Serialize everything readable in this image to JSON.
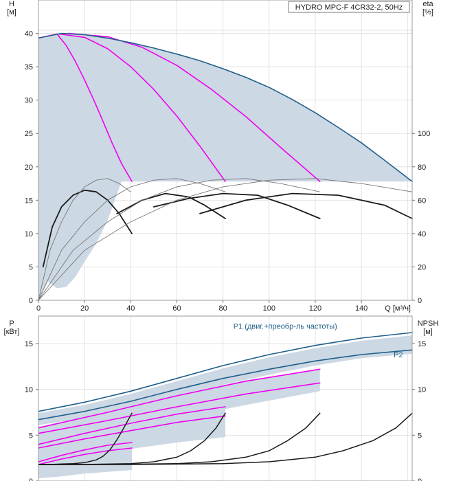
{
  "title": "HYDRO MPC-F 4CR32-2, 50Hz",
  "colors": {
    "area": "#ccd8e4",
    "envelope": "#1f5f8b",
    "magenta": "#f000f0",
    "curve": "#1a1a1a",
    "thin": "#777777",
    "grid": "#e2e2e2"
  },
  "chart_data": [
    {
      "type": "line",
      "name": "performance",
      "title": "HYDRO MPC-F 4CR32-2, 50Hz",
      "xlabel": "Q [м³/ч]",
      "ylabel": "H [м]",
      "y2label": "eta [%]",
      "x_axis": {
        "lim": [
          0,
          162
        ],
        "ticks": [
          0,
          20,
          40,
          60,
          80,
          100,
          120,
          140
        ],
        "label_lines": [
          "Q [м³/ч]"
        ]
      },
      "y_axis": {
        "lim": [
          0,
          45
        ],
        "ticks": [
          0,
          5,
          10,
          15,
          20,
          25,
          30,
          35,
          40
        ],
        "label_lines": [
          "H",
          "[м]"
        ]
      },
      "y2_axis": {
        "lim": [
          0,
          180
        ],
        "ticks": [
          0,
          20,
          40,
          60,
          80,
          100
        ],
        "label_lines": [
          "eta",
          "[%]"
        ]
      },
      "grid": true,
      "series": [
        {
          "role": "magenta",
          "axis": "y",
          "x": [
            0,
            4,
            8,
            12,
            16,
            20,
            24,
            28,
            32,
            36,
            40.5
          ],
          "y": [
            39.3,
            39.6,
            39.9,
            38.2,
            35.8,
            33,
            30,
            26.8,
            23.5,
            20.5,
            17.8
          ]
        },
        {
          "role": "magenta",
          "axis": "y",
          "x": [
            9,
            20,
            30,
            40,
            50,
            60,
            70,
            81
          ],
          "y": [
            39.9,
            39.4,
            37.7,
            35,
            31.6,
            27.6,
            23.1,
            17.8
          ]
        },
        {
          "role": "magenta",
          "axis": "y",
          "x": [
            13,
            30,
            45,
            60,
            75,
            90,
            105,
            122
          ],
          "y": [
            40,
            39.5,
            37.9,
            35.2,
            31.6,
            27.5,
            22.9,
            17.8
          ]
        },
        {
          "role": "envelope",
          "axis": "y",
          "x": [
            0,
            10,
            20,
            30,
            40,
            50,
            60,
            70,
            80,
            90,
            100,
            110,
            120,
            130,
            140,
            150,
            162
          ],
          "y": [
            39.3,
            40,
            39.8,
            39.3,
            38.6,
            37.8,
            36.9,
            35.9,
            34.7,
            33.4,
            31.9,
            30.1,
            28.1,
            25.9,
            23.6,
            21,
            17.8
          ]
        },
        {
          "role": "eta",
          "axis": "y2",
          "x": [
            2,
            6,
            10,
            15,
            20,
            25,
            30,
            35,
            40.5
          ],
          "y": [
            20,
            44,
            56,
            63,
            66,
            65,
            60,
            52,
            40
          ]
        },
        {
          "role": "eta",
          "axis": "y2",
          "x": [
            34,
            45,
            55,
            65,
            72,
            81
          ],
          "y": [
            52,
            60,
            64,
            62,
            57,
            49
          ]
        },
        {
          "role": "eta",
          "axis": "y2",
          "x": [
            50,
            65,
            80,
            95,
            108,
            122
          ],
          "y": [
            56,
            61,
            64,
            63,
            57,
            49
          ]
        },
        {
          "role": "eta",
          "axis": "y2",
          "x": [
            70,
            90,
            110,
            130,
            150,
            162
          ],
          "y": [
            52,
            60,
            64,
            63,
            57,
            49
          ]
        },
        {
          "role": "eta_thin",
          "axis": "y2",
          "x": [
            0,
            5,
            10,
            15,
            20,
            25,
            30,
            35,
            40
          ],
          "y": [
            0,
            30,
            47,
            60,
            68,
            72,
            73,
            70,
            65
          ]
        },
        {
          "role": "eta_thin",
          "axis": "y2",
          "x": [
            0,
            10,
            20,
            30,
            40,
            50,
            60,
            70,
            81
          ],
          "y": [
            0,
            30,
            47,
            60,
            68,
            72,
            73,
            70,
            65
          ]
        },
        {
          "role": "eta_thin",
          "axis": "y2",
          "x": [
            0,
            15,
            30,
            45,
            60,
            75,
            90,
            105,
            122
          ],
          "y": [
            0,
            30,
            47,
            60,
            68,
            72,
            73,
            70,
            65
          ]
        },
        {
          "role": "eta_thin",
          "axis": "y2",
          "x": [
            0,
            20,
            40,
            60,
            80,
            100,
            120,
            140,
            162
          ],
          "y": [
            0,
            30,
            47,
            60,
            68,
            72,
            73,
            70,
            65
          ]
        }
      ],
      "areas": [
        {
          "x": [
            0,
            5,
            10,
            13,
            20,
            30,
            40,
            50,
            60,
            70,
            80,
            90,
            100,
            110,
            120,
            130,
            140,
            150,
            162,
            162,
            60,
            40,
            36,
            30,
            25,
            20,
            16,
            12,
            8,
            4,
            0
          ],
          "y": [
            39.3,
            39.6,
            39.9,
            40,
            39.8,
            39.3,
            38.6,
            37.8,
            36.9,
            35.9,
            34.7,
            33.4,
            31.9,
            30.1,
            28.1,
            25.9,
            23.6,
            21,
            17.8,
            17.8,
            17.8,
            17.8,
            17.8,
            12,
            8.5,
            5.8,
            3.5,
            2,
            1.8,
            2.8,
            0
          ]
        }
      ]
    },
    {
      "type": "line",
      "name": "power-npsh",
      "xlabel": "",
      "ylabel": "P [кВт]",
      "y2label": "NPSH [м]",
      "x_axis": {
        "lim": [
          0,
          162
        ],
        "ticks": [],
        "label_lines": []
      },
      "y_axis": {
        "lim": [
          0,
          18
        ],
        "ticks": [
          0,
          5,
          10,
          15
        ],
        "label_lines": [
          "P",
          "[кВт]"
        ]
      },
      "y2_axis": {
        "lim": [
          0,
          18
        ],
        "ticks": [
          0,
          5,
          10,
          15
        ],
        "label_lines": [
          "NPSH",
          "[м]"
        ]
      },
      "grid": true,
      "annotations": [
        {
          "text": "P1 (двиг.+преобр-ль частоты)",
          "x": 107,
          "y": 16.6
        },
        {
          "text": "P2",
          "x": 156,
          "y": 13.5
        }
      ],
      "series": [
        {
          "role": "envelope",
          "name": "P1 (двиг.+преобр-ль частоты)",
          "axis": "y",
          "x": [
            0,
            20,
            40,
            60,
            80,
            100,
            120,
            140,
            162
          ],
          "y": [
            7.6,
            8.6,
            9.8,
            11.2,
            12.6,
            13.8,
            14.8,
            15.6,
            16.2
          ]
        },
        {
          "role": "envelope",
          "name": "P2",
          "axis": "y",
          "x": [
            0,
            20,
            40,
            60,
            80,
            100,
            120,
            140,
            162
          ],
          "y": [
            6.7,
            7.6,
            8.7,
            10,
            11.2,
            12.2,
            13.1,
            13.8,
            14.3
          ]
        },
        {
          "role": "magenta",
          "axis": "y",
          "x": [
            0,
            10,
            20,
            30,
            40.5
          ],
          "y": [
            2.1,
            2.8,
            3.4,
            3.9,
            4.2
          ]
        },
        {
          "role": "magenta",
          "axis": "y",
          "x": [
            0,
            10,
            20,
            30,
            40.5
          ],
          "y": [
            1.8,
            2.4,
            2.9,
            3.3,
            3.6
          ]
        },
        {
          "role": "magenta",
          "axis": "y",
          "x": [
            0,
            20,
            40,
            60,
            81
          ],
          "y": [
            4,
            5.2,
            6.3,
            7.3,
            8.1
          ]
        },
        {
          "role": "magenta",
          "axis": "y",
          "x": [
            0,
            20,
            40,
            60,
            81
          ],
          "y": [
            3.6,
            4.6,
            5.5,
            6.4,
            7.1
          ]
        },
        {
          "role": "magenta",
          "axis": "y",
          "x": [
            0,
            30,
            60,
            90,
            122
          ],
          "y": [
            5.8,
            7.5,
            9.3,
            10.9,
            12.2
          ]
        },
        {
          "role": "magenta",
          "axis": "y",
          "x": [
            0,
            30,
            60,
            90,
            122
          ],
          "y": [
            5.2,
            6.6,
            8.1,
            9.5,
            10.7
          ]
        },
        {
          "role": "npsh",
          "axis": "y2",
          "x": [
            0,
            5,
            10,
            15,
            20,
            25,
            28,
            31,
            34,
            37,
            40.5
          ],
          "y": [
            1.8,
            1.8,
            1.85,
            1.9,
            2,
            2.3,
            2.7,
            3.4,
            4.5,
            5.8,
            7.4
          ]
        },
        {
          "role": "npsh",
          "axis": "y2",
          "x": [
            0,
            20,
            40,
            50,
            60,
            66,
            72,
            77,
            81
          ],
          "y": [
            1.8,
            1.8,
            1.9,
            2.1,
            2.6,
            3.3,
            4.4,
            5.8,
            7.4
          ]
        },
        {
          "role": "npsh",
          "axis": "y2",
          "x": [
            0,
            30,
            60,
            75,
            90,
            100,
            108,
            116,
            122
          ],
          "y": [
            1.8,
            1.8,
            1.9,
            2.1,
            2.6,
            3.3,
            4.4,
            5.8,
            7.4
          ]
        },
        {
          "role": "npsh",
          "axis": "y2",
          "x": [
            0,
            40,
            80,
            100,
            120,
            132,
            145,
            155,
            162
          ],
          "y": [
            1.8,
            1.8,
            1.9,
            2.1,
            2.6,
            3.3,
            4.4,
            5.8,
            7.4
          ]
        }
      ],
      "areas": [
        {
          "x": [
            0,
            20,
            40,
            60,
            80,
            100,
            120,
            140,
            162,
            162,
            140,
            120,
            100,
            80,
            60,
            40,
            20,
            0
          ],
          "y": [
            7.4,
            8.3,
            9.5,
            10.9,
            12.3,
            13.5,
            14.5,
            15.3,
            15.9,
            13.9,
            13.4,
            12.6,
            11.6,
            10.5,
            9.3,
            8.0,
            6.9,
            6.1
          ]
        },
        {
          "x": [
            0,
            20,
            40,
            60,
            81,
            81,
            60,
            40,
            20,
            0
          ],
          "y": [
            4.1,
            5.3,
            6.4,
            7.4,
            8.2,
            4.8,
            4.2,
            3.5,
            2.7,
            2.0
          ]
        },
        {
          "x": [
            0,
            30,
            60,
            90,
            122,
            122,
            90,
            60,
            30,
            0
          ],
          "y": [
            5.9,
            7.6,
            9.4,
            11.0,
            12.2,
            9.8,
            8.3,
            6.8,
            5.1,
            3.4
          ]
        },
        {
          "x": [
            0,
            10,
            20,
            30,
            40.5,
            40.5,
            30,
            20,
            10,
            0
          ],
          "y": [
            2.2,
            2.9,
            3.5,
            4.0,
            4.3,
            1.2,
            1.0,
            0.8,
            0.5,
            0.3
          ]
        }
      ]
    }
  ]
}
